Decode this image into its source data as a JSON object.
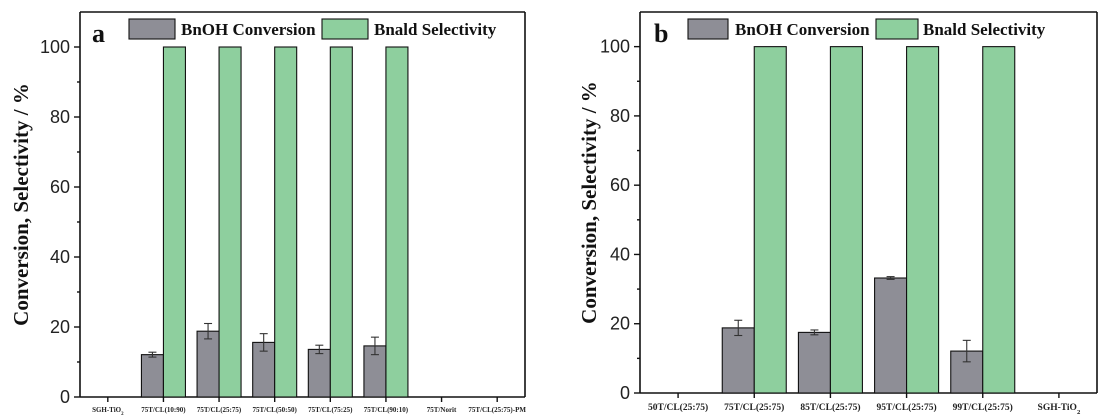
{
  "chart_data": [
    {
      "type": "bar",
      "panel_label": "a",
      "ylabel": "Conversion, Selectivity / %",
      "xlabel": "",
      "ylim": [
        0,
        110
      ],
      "yticks": [
        0,
        20,
        40,
        60,
        80,
        100
      ],
      "categories": [
        "SGH-TiO₂",
        "75T/CL(10:90)",
        "75T/CL(25:75)",
        "75T/CL(50:50)",
        "75T/CL(75:25)",
        "75T/CL(90:10)",
        "75T/Norit",
        "75T/CL(25:75)-PM"
      ],
      "series": [
        {
          "name": "BnOH Conversion",
          "color": "#8e8e96",
          "values": [
            0,
            12.1,
            18.8,
            15.6,
            13.6,
            14.6,
            0,
            0
          ],
          "errors": [
            0,
            0.7,
            2.2,
            2.5,
            1.2,
            2.5,
            0,
            0
          ]
        },
        {
          "name": "Bnald Selectivity",
          "color": "#8ecf9e",
          "values": [
            0,
            100,
            100,
            100,
            100,
            100,
            0,
            0
          ],
          "errors": [
            0,
            0,
            0,
            0,
            0,
            0,
            0,
            0
          ]
        }
      ],
      "legend": "top"
    },
    {
      "type": "bar",
      "panel_label": "b",
      "ylabel": "Conversion, Selectivity / %",
      "xlabel": "",
      "ylim": [
        0,
        110
      ],
      "yticks": [
        0,
        20,
        40,
        60,
        80,
        100
      ],
      "categories": [
        "50T/CL(25:75)",
        "75T/CL(25:75)",
        "85T/CL(25:75)",
        "95T/CL(25:75)",
        "99T/CL(25:75)",
        "SGH-TiO₂"
      ],
      "series": [
        {
          "name": "BnOH Conversion",
          "color": "#8e8e96",
          "values": [
            0,
            18.8,
            17.5,
            33.2,
            12.1,
            0
          ],
          "errors": [
            0,
            2.2,
            0.7,
            0.4,
            3.1,
            0
          ]
        },
        {
          "name": "Bnald Selectivity",
          "color": "#8ecf9e",
          "values": [
            0,
            100,
            100,
            100,
            100,
            0
          ],
          "errors": [
            0,
            0,
            0,
            0,
            0,
            0
          ]
        }
      ],
      "legend": "top"
    }
  ]
}
